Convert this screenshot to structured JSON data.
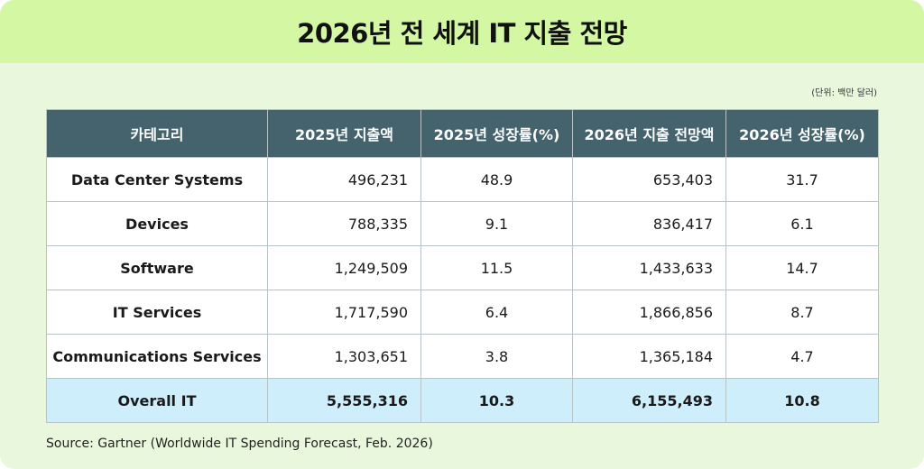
{
  "title": "2026년 전 세계 IT 지출 전망",
  "unit_note": "(단위: 백만 달러)",
  "source": "Source: Gartner (Worldwide IT Spending Forecast, Feb. 2026)",
  "chart_data": {
    "type": "table",
    "title": "2026년 전 세계 IT 지출 전망",
    "columns": [
      "카테고리",
      "2025년 지출액",
      "2025년 성장률(%)",
      "2026년 지출 전망액",
      "2026년 성장률(%)"
    ],
    "rows": [
      [
        "Data Center Systems",
        "496,231",
        "48.9",
        "653,403",
        "31.7"
      ],
      [
        "Devices",
        "788,335",
        "9.1",
        "836,417",
        "6.1"
      ],
      [
        "Software",
        "1,249,509",
        "11.5",
        "1,433,633",
        "14.7"
      ],
      [
        "IT Services",
        "1,717,590",
        "6.4",
        "1,866,856",
        "8.7"
      ],
      [
        "Communications Services",
        "1,303,651",
        "3.8",
        "1,365,184",
        "4.7"
      ]
    ],
    "total": [
      "Overall IT",
      "5,555,316",
      "10.3",
      "6,155,493",
      "10.8"
    ]
  },
  "colors": {
    "title_bg": "#d4f7a4",
    "card_bg": "#e9f8dc",
    "header_bg": "#44636d",
    "total_row_bg": "#cdeefa"
  }
}
